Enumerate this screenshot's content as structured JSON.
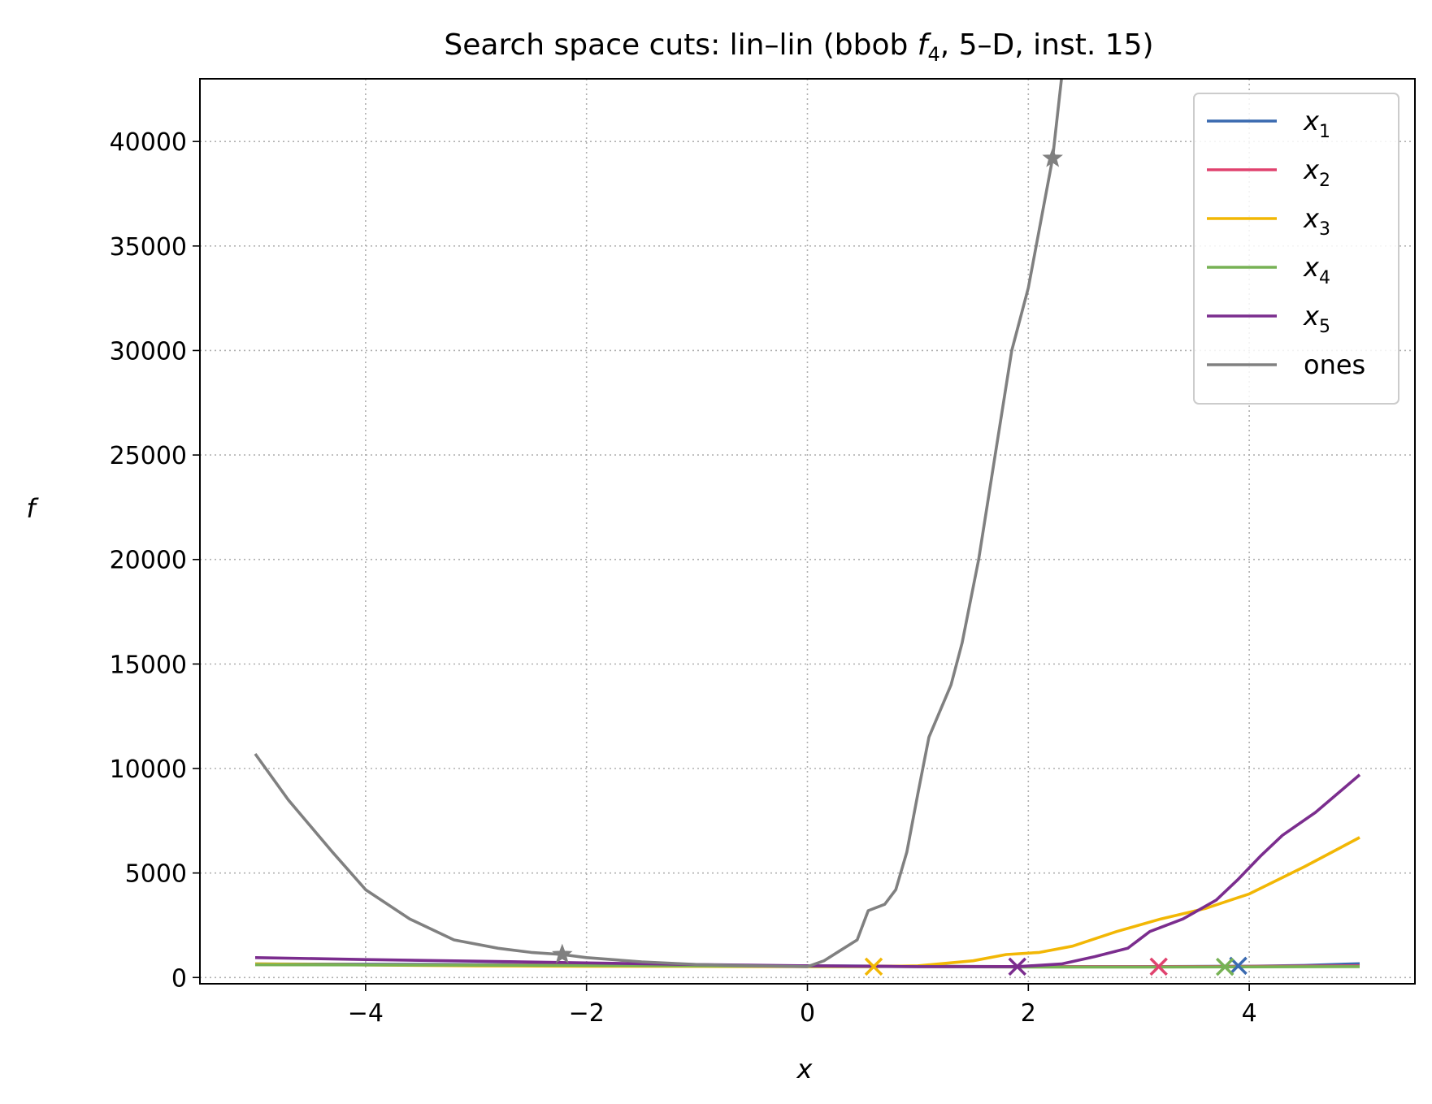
{
  "chart_data": {
    "type": "line",
    "title_parts": {
      "pre": "Search space cuts: lin–lin (bbob ",
      "fn": "f",
      "sub": "4",
      "post": ", 5–D, inst. 15)"
    },
    "xlabel": "x",
    "ylabel": "f",
    "xlim": [
      -5.5,
      5.5
    ],
    "ylim": [
      -300,
      43000
    ],
    "xticks": [
      -4,
      -2,
      0,
      2,
      4
    ],
    "xtick_labels": [
      "−4",
      "−2",
      "0",
      "2",
      "4"
    ],
    "yticks": [
      0,
      5000,
      10000,
      15000,
      20000,
      25000,
      30000,
      35000,
      40000
    ],
    "ytick_labels": [
      "0",
      "5000",
      "10000",
      "15000",
      "20000",
      "25000",
      "30000",
      "35000",
      "40000"
    ],
    "grid": true,
    "legend_position": "top-right",
    "series": [
      {
        "name": "x",
        "sub": "1",
        "color": "#3a6ab0",
        "x": [
          -5,
          -3,
          -1,
          0,
          1,
          2,
          3,
          4,
          4.5,
          5
        ],
        "y": [
          650,
          620,
          580,
          560,
          540,
          520,
          520,
          540,
          580,
          660
        ],
        "marker": {
          "type": "x",
          "x": 3.9,
          "y": 560
        }
      },
      {
        "name": "x",
        "sub": "2",
        "color": "#e0426e",
        "x": [
          -5,
          -3,
          -1,
          0,
          1,
          2,
          3,
          4,
          5
        ],
        "y": [
          620,
          600,
          570,
          550,
          530,
          520,
          520,
          530,
          560
        ],
        "marker": {
          "type": "x",
          "x": 3.18,
          "y": 520
        }
      },
      {
        "name": "x",
        "sub": "3",
        "color": "#f2b705",
        "x": [
          -5,
          -4,
          -3,
          -2,
          -1,
          0,
          0.6,
          1,
          1.5,
          1.8,
          2.1,
          2.4,
          2.8,
          3.2,
          3.6,
          4,
          4.5,
          5
        ],
        "y": [
          650,
          600,
          560,
          540,
          530,
          520,
          520,
          560,
          800,
          1100,
          1200,
          1500,
          2200,
          2800,
          3300,
          4000,
          5300,
          6700
        ],
        "marker": {
          "type": "x",
          "x": 0.6,
          "y": 520
        }
      },
      {
        "name": "x",
        "sub": "4",
        "color": "#77b255",
        "x": [
          -5,
          -3,
          -1,
          0,
          1,
          2,
          3,
          4,
          5
        ],
        "y": [
          610,
          590,
          560,
          540,
          520,
          500,
          500,
          510,
          520
        ],
        "marker": {
          "type": "x",
          "x": 3.78,
          "y": 510
        }
      },
      {
        "name": "x",
        "sub": "5",
        "color": "#7b2d8e",
        "x": [
          -5,
          -4,
          -3,
          -2,
          -1,
          0,
          1,
          1.9,
          2.3,
          2.6,
          2.9,
          3.1,
          3.4,
          3.7,
          3.9,
          4.1,
          4.3,
          4.6,
          5
        ],
        "y": [
          950,
          860,
          780,
          700,
          620,
          560,
          520,
          520,
          650,
          1000,
          1400,
          2200,
          2800,
          3700,
          4700,
          5800,
          6800,
          7900,
          9700
        ],
        "marker": {
          "type": "x",
          "x": 1.9,
          "y": 520
        }
      },
      {
        "name": "ones",
        "sub": "",
        "color": "#808080",
        "x": [
          -5,
          -4.7,
          -4.3,
          -4,
          -3.6,
          -3.2,
          -2.8,
          -2.5,
          -2.22,
          -2,
          -1.5,
          -1,
          -0.5,
          0,
          0.15,
          0.3,
          0.45,
          0.55,
          0.7,
          0.8,
          0.9,
          1,
          1.1,
          1.3,
          1.4,
          1.55,
          1.7,
          1.85,
          2,
          2.22,
          2.3
        ],
        "y": [
          10700,
          8500,
          6000,
          4200,
          2800,
          1800,
          1400,
          1200,
          1100,
          950,
          750,
          620,
          560,
          520,
          800,
          1300,
          1800,
          3200,
          3500,
          4200,
          6000,
          8800,
          11500,
          14000,
          16000,
          20000,
          25000,
          30000,
          33000,
          39200,
          43000
        ],
        "marker": {
          "type": "star",
          "x": -2.22,
          "y": 1100
        },
        "marker2": {
          "type": "star",
          "x": 2.22,
          "y": 39200
        }
      }
    ]
  }
}
